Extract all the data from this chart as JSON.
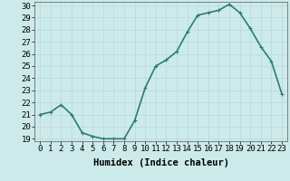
{
  "xlabel": "Humidex (Indice chaleur)",
  "x": [
    0,
    1,
    2,
    3,
    4,
    5,
    6,
    7,
    8,
    9,
    10,
    11,
    12,
    13,
    14,
    15,
    16,
    17,
    18,
    19,
    20,
    21,
    22,
    23
  ],
  "y": [
    21.0,
    21.2,
    21.8,
    21.0,
    19.5,
    19.2,
    19.0,
    19.0,
    19.0,
    20.5,
    23.2,
    25.0,
    25.5,
    26.2,
    27.8,
    29.2,
    29.4,
    29.6,
    30.1,
    29.4,
    28.1,
    26.6,
    25.4,
    22.7
  ],
  "line_color": "#2d7d6e",
  "marker": "+",
  "marker_size": 3,
  "bg_color": "#cdeaea",
  "grid_color": "#b8d8d8",
  "ylim_min": 18.8,
  "ylim_max": 30.3,
  "yticks": [
    19,
    20,
    21,
    22,
    23,
    24,
    25,
    26,
    27,
    28,
    29,
    30
  ],
  "tick_fontsize": 6.5,
  "xlabel_fontsize": 7.5,
  "line_width": 1.2,
  "marker_edge_width": 0.8
}
